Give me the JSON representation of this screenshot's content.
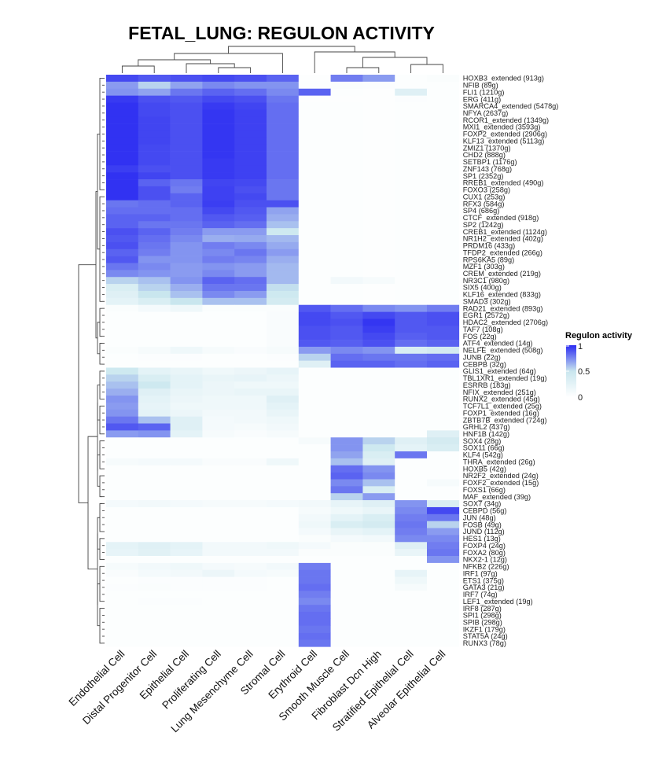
{
  "chart_data": {
    "type": "heatmap",
    "title": "FETAL_LUNG: REGULON ACTIVITY",
    "legend": {
      "title": "Regulon activity",
      "ticks": [
        "1",
        "0.5",
        "0"
      ],
      "placement": "right",
      "colors": [
        "#ffffff",
        "#c9e6ee",
        "#2b2bf2"
      ]
    },
    "columns": [
      "Endothelial Cell",
      "Distal Progenitor Cell",
      "Epithelial Cell",
      "Proliferating Cell",
      "Lung Mesenchyme Cell",
      "Stromal Cell",
      "Erythroid Cell",
      "Smooth Muscle Cell",
      "Fibroblast Dcn High",
      "Stratified Epithelial Cell",
      "Alveolar Epithelial Cell"
    ],
    "rows": [
      "HOXB3_extended (913g)",
      "NFIB (89g)",
      "FLI1 (1210g)",
      "ERG (411g)",
      "SMARCA4_extended (5478g)",
      "NFYA (2637g)",
      "RCOR1_extended (1349g)",
      "MXI1_extended (3593g)",
      "FOXP2_extended (2906g)",
      "KLF13_extended (5113g)",
      "ZMIZ1 (1370g)",
      "CHD2 (888g)",
      "SETBP1 (1176g)",
      "ZNF143 (768g)",
      "SP1 (2352g)",
      "RREB1_extended (490g)",
      "FOXO3 (258g)",
      "CUX1 (253g)",
      "RFX3 (584g)",
      "SP4 (686g)",
      "CTCF_extended (918g)",
      "SP2 (1242g)",
      "CREB1_extended (1124g)",
      "NR1H2_extended (402g)",
      "PRDM16 (433g)",
      "TFDP2_extended (266g)",
      "RPS6KA5 (89g)",
      "MZF1 (303g)",
      "CREM_extended (219g)",
      "NR3C1 (980g)",
      "SIX5 (400g)",
      "KLF16_extended (833g)",
      "SMAD3 (302g)",
      "RAD21_extended (893g)",
      "EGR1 (2572g)",
      "HDAC2_extended (2706g)",
      "TAF7 (108g)",
      "FOS (22g)",
      "ATF4_extended (14g)",
      "NELFE_extended (508g)",
      "JUNB (22g)",
      "CEBPB (32g)",
      "GLIS1_extended (64g)",
      "TBL1XR1_extended (19g)",
      "ESRRB (183g)",
      "NFIX_extended (251g)",
      "RUNX2_extended (45g)",
      "TCF7L1_extended (25g)",
      "FOXP1_extended (16g)",
      "ZBTB7B_extended (724g)",
      "GRHL2 (437g)",
      "HNF1B (142g)",
      "SOX4 (28g)",
      "SOX11 (66g)",
      "KLF4 (542g)",
      "THRA_extended (26g)",
      "HOXB5 (42g)",
      "NR2F2_extended (24g)",
      "FOXF2_extended (15g)",
      "FOXS1 (66g)",
      "MAF_extended (39g)",
      "SOX7 (34g)",
      "CEBPD (56g)",
      "JUN (48g)",
      "FOSB (49g)",
      "JUND (112g)",
      "HES1 (13g)",
      "FOXP4 (24g)",
      "FOXA2 (80g)",
      "NKX2-1 (12g)",
      "NFKB2 (226g)",
      "IRF1 (97g)",
      "ETS1 (375g)",
      "GATA3 (21g)",
      "IRF7 (74g)",
      "LEF1_extended (19g)",
      "IRF8 (287g)",
      "SPI1 (298g)",
      "SPIB (298g)",
      "IKZF1 (179g)",
      "STAT5A (24g)",
      "RUNX3 (78g)"
    ],
    "values": [
      [
        0.92,
        0.88,
        0.9,
        0.92,
        0.9,
        0.85,
        0.02,
        0.78,
        0.7,
        0.03,
        0.05
      ],
      [
        0.7,
        0.55,
        0.68,
        0.75,
        0.72,
        0.72,
        0.03,
        0.05,
        0.04,
        0.03,
        0.03
      ],
      [
        0.72,
        0.68,
        0.8,
        0.85,
        0.82,
        0.75,
        0.85,
        0.03,
        0.02,
        0.3,
        0.03
      ],
      [
        0.96,
        0.9,
        0.88,
        0.92,
        0.9,
        0.8,
        0.02,
        0.02,
        0.02,
        0.04,
        0.03
      ],
      [
        0.98,
        0.92,
        0.9,
        0.96,
        0.93,
        0.82,
        0.03,
        0.03,
        0.02,
        0.03,
        0.03
      ],
      [
        0.98,
        0.92,
        0.9,
        0.97,
        0.94,
        0.82,
        0.03,
        0.03,
        0.02,
        0.03,
        0.03
      ],
      [
        0.98,
        0.93,
        0.9,
        0.97,
        0.94,
        0.82,
        0.03,
        0.03,
        0.02,
        0.03,
        0.03
      ],
      [
        0.98,
        0.93,
        0.9,
        0.97,
        0.94,
        0.82,
        0.03,
        0.03,
        0.02,
        0.03,
        0.03
      ],
      [
        0.98,
        0.93,
        0.9,
        0.97,
        0.94,
        0.82,
        0.03,
        0.03,
        0.02,
        0.03,
        0.03
      ],
      [
        0.98,
        0.93,
        0.9,
        0.97,
        0.94,
        0.82,
        0.03,
        0.03,
        0.02,
        0.03,
        0.03
      ],
      [
        0.98,
        0.92,
        0.9,
        0.97,
        0.94,
        0.82,
        0.03,
        0.03,
        0.02,
        0.03,
        0.03
      ],
      [
        0.98,
        0.92,
        0.9,
        0.97,
        0.94,
        0.82,
        0.03,
        0.03,
        0.02,
        0.03,
        0.03
      ],
      [
        0.98,
        0.92,
        0.9,
        0.96,
        0.94,
        0.82,
        0.03,
        0.03,
        0.02,
        0.03,
        0.03
      ],
      [
        0.95,
        0.9,
        0.9,
        0.96,
        0.94,
        0.82,
        0.03,
        0.03,
        0.02,
        0.03,
        0.03
      ],
      [
        0.98,
        0.93,
        0.9,
        0.96,
        0.94,
        0.82,
        0.03,
        0.03,
        0.02,
        0.03,
        0.03
      ],
      [
        0.98,
        0.85,
        0.8,
        0.93,
        0.92,
        0.8,
        0.03,
        0.03,
        0.02,
        0.03,
        0.03
      ],
      [
        0.98,
        0.9,
        0.78,
        0.94,
        0.9,
        0.8,
        0.03,
        0.03,
        0.02,
        0.03,
        0.03
      ],
      [
        0.98,
        0.9,
        0.85,
        0.94,
        0.92,
        0.8,
        0.03,
        0.03,
        0.02,
        0.03,
        0.03
      ],
      [
        0.8,
        0.82,
        0.85,
        0.95,
        0.9,
        0.9,
        0.03,
        0.03,
        0.02,
        0.03,
        0.03
      ],
      [
        0.82,
        0.82,
        0.82,
        0.92,
        0.88,
        0.68,
        0.03,
        0.03,
        0.02,
        0.03,
        0.03
      ],
      [
        0.85,
        0.85,
        0.82,
        0.88,
        0.86,
        0.65,
        0.03,
        0.03,
        0.02,
        0.03,
        0.03
      ],
      [
        0.85,
        0.8,
        0.8,
        0.85,
        0.82,
        0.6,
        0.03,
        0.03,
        0.02,
        0.03,
        0.03
      ],
      [
        0.9,
        0.85,
        0.78,
        0.7,
        0.7,
        0.45,
        0.03,
        0.03,
        0.02,
        0.03,
        0.03
      ],
      [
        0.88,
        0.82,
        0.75,
        0.65,
        0.66,
        0.62,
        0.03,
        0.03,
        0.02,
        0.03,
        0.03
      ],
      [
        0.9,
        0.8,
        0.72,
        0.78,
        0.75,
        0.66,
        0.03,
        0.03,
        0.02,
        0.03,
        0.03
      ],
      [
        0.85,
        0.78,
        0.72,
        0.75,
        0.8,
        0.7,
        0.03,
        0.03,
        0.02,
        0.03,
        0.03
      ],
      [
        0.88,
        0.72,
        0.72,
        0.78,
        0.76,
        0.65,
        0.03,
        0.03,
        0.02,
        0.03,
        0.03
      ],
      [
        0.8,
        0.75,
        0.7,
        0.72,
        0.7,
        0.62,
        0.03,
        0.03,
        0.02,
        0.03,
        0.03
      ],
      [
        0.75,
        0.72,
        0.7,
        0.75,
        0.7,
        0.62,
        0.03,
        0.03,
        0.02,
        0.03,
        0.03
      ],
      [
        0.55,
        0.6,
        0.72,
        0.85,
        0.82,
        0.62,
        0.03,
        0.12,
        0.08,
        0.03,
        0.03
      ],
      [
        0.35,
        0.55,
        0.65,
        0.8,
        0.8,
        0.52,
        0.03,
        0.03,
        0.02,
        0.03,
        0.03
      ],
      [
        0.3,
        0.5,
        0.6,
        0.75,
        0.7,
        0.45,
        0.03,
        0.03,
        0.02,
        0.03,
        0.03
      ],
      [
        0.25,
        0.35,
        0.5,
        0.6,
        0.6,
        0.4,
        0.03,
        0.03,
        0.02,
        0.03,
        0.03
      ],
      [
        0.05,
        0.1,
        0.15,
        0.05,
        0.05,
        0.05,
        0.88,
        0.82,
        0.75,
        0.72,
        0.78
      ],
      [
        0.03,
        0.03,
        0.03,
        0.03,
        0.03,
        0.06,
        0.92,
        0.88,
        0.92,
        0.88,
        0.9
      ],
      [
        0.03,
        0.03,
        0.03,
        0.03,
        0.03,
        0.06,
        0.92,
        0.9,
        0.97,
        0.88,
        0.9
      ],
      [
        0.03,
        0.03,
        0.03,
        0.03,
        0.03,
        0.06,
        0.9,
        0.88,
        0.95,
        0.88,
        0.88
      ],
      [
        0.03,
        0.03,
        0.03,
        0.03,
        0.03,
        0.06,
        0.9,
        0.88,
        0.92,
        0.86,
        0.88
      ],
      [
        0.03,
        0.03,
        0.03,
        0.03,
        0.03,
        0.06,
        0.88,
        0.86,
        0.9,
        0.82,
        0.85
      ],
      [
        0.05,
        0.08,
        0.15,
        0.08,
        0.06,
        0.08,
        0.7,
        0.75,
        0.72,
        0.35,
        0.4
      ],
      [
        0.03,
        0.04,
        0.04,
        0.03,
        0.03,
        0.04,
        0.55,
        0.82,
        0.8,
        0.8,
        0.82
      ],
      [
        0.03,
        0.03,
        0.03,
        0.03,
        0.03,
        0.03,
        0.3,
        0.85,
        0.85,
        0.82,
        0.85
      ],
      [
        0.45,
        0.25,
        0.2,
        0.15,
        0.18,
        0.22,
        0.03,
        0.03,
        0.03,
        0.03,
        0.03
      ],
      [
        0.55,
        0.35,
        0.25,
        0.2,
        0.22,
        0.18,
        0.03,
        0.03,
        0.03,
        0.03,
        0.03
      ],
      [
        0.6,
        0.45,
        0.25,
        0.18,
        0.15,
        0.15,
        0.03,
        0.03,
        0.03,
        0.03,
        0.03
      ],
      [
        0.65,
        0.3,
        0.2,
        0.18,
        0.2,
        0.2,
        0.03,
        0.03,
        0.03,
        0.03,
        0.03
      ],
      [
        0.72,
        0.25,
        0.18,
        0.15,
        0.15,
        0.3,
        0.03,
        0.03,
        0.03,
        0.03,
        0.03
      ],
      [
        0.7,
        0.22,
        0.15,
        0.15,
        0.15,
        0.25,
        0.03,
        0.03,
        0.03,
        0.03,
        0.03
      ],
      [
        0.72,
        0.25,
        0.18,
        0.12,
        0.12,
        0.2,
        0.03,
        0.03,
        0.03,
        0.03,
        0.03
      ],
      [
        0.8,
        0.6,
        0.3,
        0.1,
        0.12,
        0.15,
        0.03,
        0.03,
        0.03,
        0.03,
        0.03
      ],
      [
        0.88,
        0.85,
        0.3,
        0.1,
        0.08,
        0.12,
        0.03,
        0.03,
        0.03,
        0.03,
        0.03
      ],
      [
        0.7,
        0.72,
        0.25,
        0.08,
        0.06,
        0.08,
        0.03,
        0.03,
        0.03,
        0.03,
        0.3
      ],
      [
        0.03,
        0.03,
        0.03,
        0.03,
        0.03,
        0.03,
        0.08,
        0.72,
        0.55,
        0.3,
        0.4
      ],
      [
        0.03,
        0.03,
        0.03,
        0.03,
        0.03,
        0.03,
        0.03,
        0.72,
        0.45,
        0.25,
        0.35
      ],
      [
        0.03,
        0.03,
        0.03,
        0.03,
        0.03,
        0.03,
        0.03,
        0.68,
        0.35,
        0.8,
        0.03
      ],
      [
        0.08,
        0.1,
        0.1,
        0.06,
        0.06,
        0.15,
        0.03,
        0.6,
        0.3,
        0.03,
        0.03
      ],
      [
        0.03,
        0.03,
        0.03,
        0.03,
        0.03,
        0.03,
        0.03,
        0.82,
        0.72,
        0.03,
        0.03
      ],
      [
        0.03,
        0.03,
        0.03,
        0.03,
        0.03,
        0.03,
        0.03,
        0.85,
        0.75,
        0.03,
        0.03
      ],
      [
        0.03,
        0.03,
        0.03,
        0.03,
        0.03,
        0.03,
        0.03,
        0.75,
        0.6,
        0.03,
        0.08
      ],
      [
        0.03,
        0.03,
        0.03,
        0.03,
        0.03,
        0.03,
        0.03,
        0.8,
        0.35,
        0.03,
        0.03
      ],
      [
        0.03,
        0.03,
        0.03,
        0.03,
        0.03,
        0.03,
        0.03,
        0.55,
        0.7,
        0.03,
        0.03
      ],
      [
        0.1,
        0.12,
        0.1,
        0.08,
        0.08,
        0.1,
        0.12,
        0.22,
        0.3,
        0.72,
        0.35
      ],
      [
        0.03,
        0.03,
        0.03,
        0.03,
        0.03,
        0.03,
        0.08,
        0.15,
        0.2,
        0.75,
        0.92
      ],
      [
        0.03,
        0.03,
        0.03,
        0.03,
        0.03,
        0.03,
        0.12,
        0.25,
        0.35,
        0.78,
        0.8
      ],
      [
        0.03,
        0.03,
        0.03,
        0.03,
        0.03,
        0.03,
        0.15,
        0.35,
        0.4,
        0.8,
        0.55
      ],
      [
        0.03,
        0.03,
        0.03,
        0.03,
        0.03,
        0.03,
        0.1,
        0.2,
        0.25,
        0.78,
        0.7
      ],
      [
        0.03,
        0.03,
        0.03,
        0.03,
        0.03,
        0.03,
        0.05,
        0.1,
        0.12,
        0.75,
        0.75
      ],
      [
        0.25,
        0.3,
        0.25,
        0.12,
        0.12,
        0.15,
        0.1,
        0.05,
        0.05,
        0.3,
        0.78
      ],
      [
        0.22,
        0.28,
        0.22,
        0.12,
        0.12,
        0.12,
        0.05,
        0.05,
        0.05,
        0.2,
        0.8
      ],
      [
        0.03,
        0.03,
        0.03,
        0.03,
        0.03,
        0.03,
        0.03,
        0.03,
        0.03,
        0.03,
        0.72
      ],
      [
        0.08,
        0.12,
        0.15,
        0.1,
        0.08,
        0.12,
        0.78,
        0.03,
        0.03,
        0.03,
        0.03
      ],
      [
        0.06,
        0.1,
        0.12,
        0.18,
        0.1,
        0.08,
        0.8,
        0.03,
        0.03,
        0.22,
        0.03
      ],
      [
        0.03,
        0.04,
        0.04,
        0.04,
        0.04,
        0.03,
        0.8,
        0.03,
        0.03,
        0.15,
        0.03
      ],
      [
        0.04,
        0.05,
        0.04,
        0.04,
        0.04,
        0.03,
        0.82,
        0.03,
        0.03,
        0.08,
        0.03
      ],
      [
        0.03,
        0.03,
        0.03,
        0.03,
        0.03,
        0.03,
        0.78,
        0.03,
        0.03,
        0.03,
        0.03
      ],
      [
        0.03,
        0.04,
        0.04,
        0.03,
        0.03,
        0.03,
        0.75,
        0.03,
        0.03,
        0.03,
        0.03
      ],
      [
        0.03,
        0.03,
        0.03,
        0.03,
        0.03,
        0.03,
        0.8,
        0.03,
        0.03,
        0.03,
        0.03
      ],
      [
        0.03,
        0.03,
        0.03,
        0.03,
        0.03,
        0.03,
        0.82,
        0.03,
        0.03,
        0.03,
        0.03
      ],
      [
        0.03,
        0.03,
        0.03,
        0.03,
        0.03,
        0.03,
        0.82,
        0.03,
        0.03,
        0.03,
        0.03
      ],
      [
        0.03,
        0.03,
        0.03,
        0.03,
        0.03,
        0.03,
        0.8,
        0.03,
        0.03,
        0.03,
        0.03
      ],
      [
        0.03,
        0.03,
        0.03,
        0.03,
        0.03,
        0.03,
        0.82,
        0.03,
        0.03,
        0.03,
        0.03
      ],
      [
        0.03,
        0.03,
        0.03,
        0.03,
        0.03,
        0.03,
        0.8,
        0.03,
        0.03,
        0.03,
        0.03
      ]
    ],
    "scale": [
      0,
      1
    ],
    "row_dendrogram": "left",
    "column_dendrogram": "top",
    "grid": false
  }
}
